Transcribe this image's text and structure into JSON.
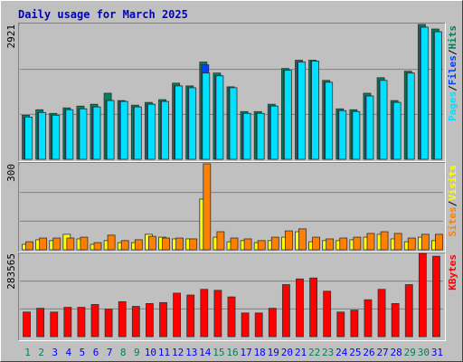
{
  "chart_data": [
    {
      "type": "bar",
      "title": "Daily usage for March 2025",
      "legend_separator": "/",
      "ylim": [
        0,
        2921
      ],
      "yticks": [
        2921
      ],
      "grid_divisions": 3,
      "series": [
        {
          "name": "Hits",
          "color": "#00805c",
          "values": [
            954,
            1073,
            994,
            1113,
            1152,
            1192,
            1431,
            1272,
            1172,
            1232,
            1292,
            1649,
            1590,
            2106,
            1868,
            1570,
            1033,
            1033,
            1192,
            1967,
            2146,
            2146,
            1709,
            1093,
            1073,
            1431,
            1768,
            1272,
            1908,
            2921,
            2822
          ]
        },
        {
          "name": "Files",
          "color": "#0040ff",
          "values": [
            914,
            1013,
            954,
            1073,
            1093,
            1133,
            1272,
            1252,
            1133,
            1192,
            1252,
            1590,
            1550,
            2047,
            1808,
            1550,
            994,
            994,
            1152,
            1927,
            2106,
            2126,
            1669,
            1053,
            1033,
            1371,
            1709,
            1232,
            1868,
            2861,
            2762
          ]
        },
        {
          "name": "Pages",
          "color": "#00e0ff",
          "values": [
            914,
            1013,
            954,
            1073,
            1093,
            1133,
            1272,
            1252,
            1133,
            1192,
            1252,
            1590,
            1550,
            1868,
            1808,
            1550,
            994,
            994,
            1152,
            1927,
            2106,
            2126,
            1669,
            1053,
            1033,
            1371,
            1709,
            1232,
            1868,
            2861,
            2762
          ]
        }
      ]
    },
    {
      "type": "bar",
      "legend_separator": "/",
      "ylim": [
        0,
        300
      ],
      "yticks": [
        300
      ],
      "grid_divisions": 3,
      "series": [
        {
          "name": "Visits",
          "color": "#ffff00",
          "values": [
            19,
            35,
            32,
            54,
            38,
            19,
            32,
            25,
            25,
            54,
            44,
            38,
            38,
            177,
            44,
            28,
            32,
            25,
            32,
            44,
            63,
            28,
            32,
            32,
            35,
            44,
            54,
            38,
            28,
            44,
            32
          ]
        },
        {
          "name": "Sites",
          "color": "#ff8000",
          "values": [
            28,
            41,
            41,
            41,
            44,
            25,
            51,
            32,
            35,
            47,
            41,
            41,
            38,
            300,
            63,
            41,
            38,
            32,
            44,
            66,
            73,
            44,
            38,
            41,
            44,
            57,
            63,
            57,
            41,
            54,
            54
          ]
        }
      ]
    },
    {
      "type": "bar",
      "ylim": [
        0,
        283565
      ],
      "yticks": [
        283565
      ],
      "grid_divisions": 3,
      "categories": [
        "1",
        "2",
        "3",
        "4",
        "5",
        "6",
        "7",
        "8",
        "9",
        "10",
        "11",
        "12",
        "13",
        "14",
        "15",
        "16",
        "17",
        "18",
        "19",
        "20",
        "21",
        "22",
        "23",
        "24",
        "25",
        "26",
        "27",
        "28",
        "29",
        "30",
        "31"
      ],
      "category_colors": [
        "#00805c",
        "#00805c",
        "#0000ff",
        "#0000ff",
        "#0000ff",
        "#0000ff",
        "#0000ff",
        "#00805c",
        "#00805c",
        "#0000ff",
        "#0000ff",
        "#0000ff",
        "#0000ff",
        "#0000ff",
        "#00805c",
        "#00805c",
        "#0000ff",
        "#0000ff",
        "#0000ff",
        "#0000ff",
        "#0000ff",
        "#00805c",
        "#00805c",
        "#0000ff",
        "#0000ff",
        "#0000ff",
        "#0000ff",
        "#0000ff",
        "#00805c",
        "#00805c",
        "#0000ff"
      ],
      "series": [
        {
          "name": "KBytes",
          "color": "#ff0000",
          "values": [
            83779,
            96670,
            83779,
            99890,
            99890,
            109550,
            93440,
            119200,
            103100,
            112770,
            116000,
            148200,
            141770,
            161100,
            157880,
            135320,
            80550,
            80550,
            96670,
            177200,
            196540,
            199760,
            154660,
            83779,
            90220,
            125660,
            161100,
            112770,
            177200,
            283565,
            273870
          ]
        }
      ]
    }
  ]
}
